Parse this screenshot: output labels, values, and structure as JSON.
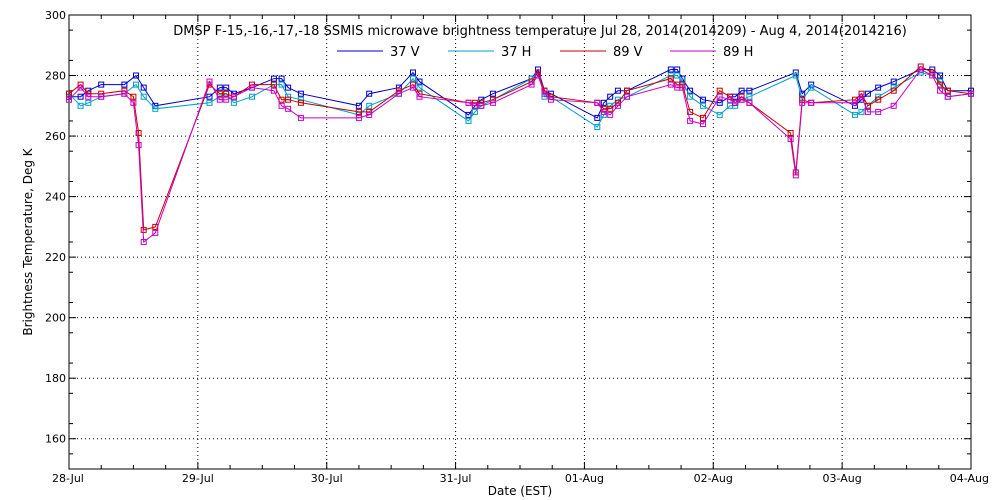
{
  "chart_data": {
    "type": "line",
    "title": "DMSP F-15,-16,-17,-18 SSMIS microwave brightness temperature Jul 28, 2014(2014209) - Aug  4, 2014(2014216)",
    "xlabel": "Date (EST)",
    "ylabel": "Brightness Temperature, Deg K",
    "xlim": [
      0,
      7
    ],
    "ylim": [
      150,
      300
    ],
    "y_ticks": [
      160,
      180,
      200,
      220,
      240,
      260,
      280,
      300
    ],
    "x_ticks": [
      {
        "value": 0,
        "label": "28-Jul"
      },
      {
        "value": 1,
        "label": "29-Jul"
      },
      {
        "value": 2,
        "label": "30-Jul"
      },
      {
        "value": 3,
        "label": "31-Jul"
      },
      {
        "value": 4,
        "label": "01-Aug"
      },
      {
        "value": 5,
        "label": "02-Aug"
      },
      {
        "value": 6,
        "label": "03-Aug"
      },
      {
        "value": 7,
        "label": "04-Aug"
      }
    ],
    "grid": true,
    "legend_position": "top-center",
    "x_unit": "days since 28-Jul 00:00 EST",
    "series": [
      {
        "name": "37 V",
        "color": "#0000c8",
        "x": [
          0.0,
          0.09,
          0.15,
          0.25,
          0.43,
          0.52,
          0.58,
          0.67,
          1.09,
          1.17,
          1.22,
          1.28,
          1.42,
          1.59,
          1.65,
          1.7,
          1.8,
          2.25,
          2.33,
          2.56,
          2.67,
          2.72,
          3.1,
          3.15,
          3.2,
          3.29,
          3.59,
          3.64,
          3.69,
          3.74,
          4.1,
          4.15,
          4.2,
          4.26,
          4.33,
          4.67,
          4.72,
          4.76,
          4.82,
          4.92,
          5.05,
          5.13,
          5.17,
          5.22,
          5.28,
          5.64,
          5.69,
          5.76,
          6.1,
          6.15,
          6.2,
          6.28,
          6.4,
          6.61,
          6.7,
          6.76,
          6.82,
          7.0
        ],
        "values": [
          273,
          273,
          275,
          277,
          277,
          280,
          276,
          270,
          273,
          276,
          276,
          274,
          276,
          279,
          279,
          276,
          274,
          270,
          274,
          276,
          281,
          278,
          267,
          270,
          272,
          274,
          279,
          282,
          275,
          274,
          266,
          271,
          273,
          275,
          275,
          282,
          282,
          279,
          275,
          272,
          271,
          273,
          273,
          275,
          275,
          281,
          274,
          277,
          270,
          272,
          274,
          276,
          278,
          282,
          282,
          280,
          275,
          275
        ]
      },
      {
        "name": "37 H",
        "color": "#00a0c8",
        "x": [
          0.0,
          0.09,
          0.15,
          0.25,
          0.43,
          0.52,
          0.58,
          0.67,
          1.09,
          1.17,
          1.22,
          1.28,
          1.42,
          1.59,
          1.65,
          1.7,
          1.8,
          2.25,
          2.33,
          2.56,
          2.67,
          2.72,
          3.1,
          3.15,
          3.2,
          3.29,
          3.59,
          3.64,
          3.69,
          3.74,
          4.1,
          4.15,
          4.2,
          4.26,
          4.33,
          4.67,
          4.72,
          4.76,
          4.82,
          4.92,
          5.05,
          5.13,
          5.17,
          5.22,
          5.28,
          5.64,
          5.69,
          5.76,
          6.1,
          6.15,
          6.2,
          6.28,
          6.4,
          6.61,
          6.7,
          6.76,
          6.82,
          7.0
        ],
        "values": [
          274,
          270,
          271,
          273,
          274,
          277,
          273,
          269,
          271,
          273,
          274,
          271,
          273,
          277,
          277,
          273,
          272,
          267,
          270,
          274,
          279,
          276,
          265,
          268,
          270,
          272,
          279,
          281,
          273,
          273,
          263,
          267,
          270,
          272,
          273,
          280,
          280,
          278,
          273,
          270,
          267,
          270,
          270,
          272,
          273,
          280,
          272,
          276,
          267,
          268,
          270,
          273,
          276,
          281,
          280,
          278,
          273,
          274
        ]
      },
      {
        "name": "89 V",
        "color": "#c80000",
        "x": [
          0.0,
          0.09,
          0.15,
          0.25,
          0.43,
          0.5,
          0.54,
          0.58,
          0.67,
          1.09,
          1.17,
          1.22,
          1.28,
          1.42,
          1.59,
          1.65,
          1.7,
          1.8,
          2.25,
          2.33,
          2.56,
          2.67,
          2.72,
          3.1,
          3.15,
          3.2,
          3.29,
          3.59,
          3.64,
          3.69,
          3.74,
          4.1,
          4.15,
          4.2,
          4.26,
          4.33,
          4.67,
          4.72,
          4.76,
          4.82,
          4.92,
          5.05,
          5.13,
          5.17,
          5.22,
          5.28,
          5.6,
          5.64,
          5.69,
          5.76,
          6.1,
          6.15,
          6.2,
          6.28,
          6.4,
          6.61,
          6.7,
          6.76,
          6.82,
          7.0
        ],
        "values": [
          274,
          277,
          274,
          274,
          275,
          273,
          261,
          229,
          230,
          277,
          274,
          274,
          273,
          277,
          277,
          272,
          272,
          271,
          268,
          268,
          275,
          277,
          274,
          271,
          271,
          271,
          272,
          278,
          281,
          275,
          273,
          271,
          269,
          269,
          271,
          275,
          279,
          277,
          277,
          268,
          266,
          275,
          273,
          271,
          273,
          271,
          261,
          248,
          272,
          271,
          272,
          274,
          270,
          272,
          275,
          283,
          281,
          277,
          275,
          274
        ]
      },
      {
        "name": "89 H",
        "color": "#c800c8",
        "x": [
          0.0,
          0.09,
          0.15,
          0.25,
          0.43,
          0.5,
          0.54,
          0.58,
          0.67,
          1.09,
          1.17,
          1.22,
          1.28,
          1.42,
          1.59,
          1.65,
          1.7,
          1.8,
          2.25,
          2.33,
          2.56,
          2.67,
          2.72,
          3.1,
          3.15,
          3.2,
          3.29,
          3.59,
          3.64,
          3.69,
          3.74,
          4.1,
          4.15,
          4.2,
          4.26,
          4.33,
          4.67,
          4.72,
          4.76,
          4.82,
          4.92,
          5.05,
          5.13,
          5.17,
          5.22,
          5.28,
          5.6,
          5.64,
          5.69,
          5.76,
          6.1,
          6.15,
          6.2,
          6.28,
          6.4,
          6.61,
          6.7,
          6.76,
          6.82,
          7.0
        ],
        "values": [
          272,
          276,
          273,
          273,
          274,
          271,
          257,
          225,
          228,
          278,
          272,
          272,
          273,
          276,
          275,
          270,
          269,
          266,
          266,
          267,
          274,
          276,
          273,
          271,
          270,
          270,
          271,
          277,
          280,
          274,
          272,
          271,
          268,
          267,
          270,
          273,
          277,
          276,
          276,
          265,
          264,
          273,
          272,
          271,
          272,
          271,
          259,
          247,
          271,
          271,
          271,
          273,
          268,
          268,
          270,
          282,
          280,
          275,
          273,
          274
        ]
      }
    ]
  }
}
